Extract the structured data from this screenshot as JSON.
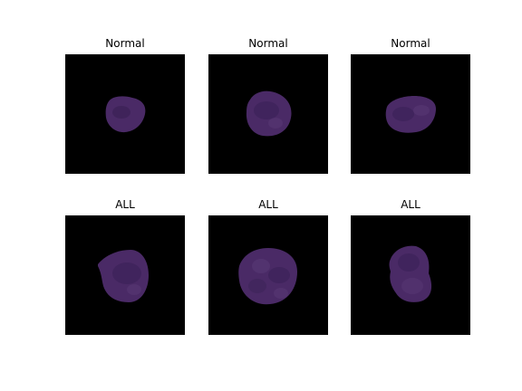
{
  "panels": [
    {
      "title": "Normal",
      "cell_icon": "cell-nucleus-small-round"
    },
    {
      "title": "Normal",
      "cell_icon": "cell-nucleus-round"
    },
    {
      "title": "Normal",
      "cell_icon": "cell-nucleus-oval"
    },
    {
      "title": "ALL",
      "cell_icon": "cell-nucleus-irregular"
    },
    {
      "title": "ALL",
      "cell_icon": "cell-nucleus-large-textured"
    },
    {
      "title": "ALL",
      "cell_icon": "cell-nucleus-lobed"
    }
  ],
  "colors": {
    "background": "#000000",
    "cell_fill": "#4a2a66",
    "cell_dark": "#2f1a45",
    "cell_light": "#6a4a86"
  }
}
